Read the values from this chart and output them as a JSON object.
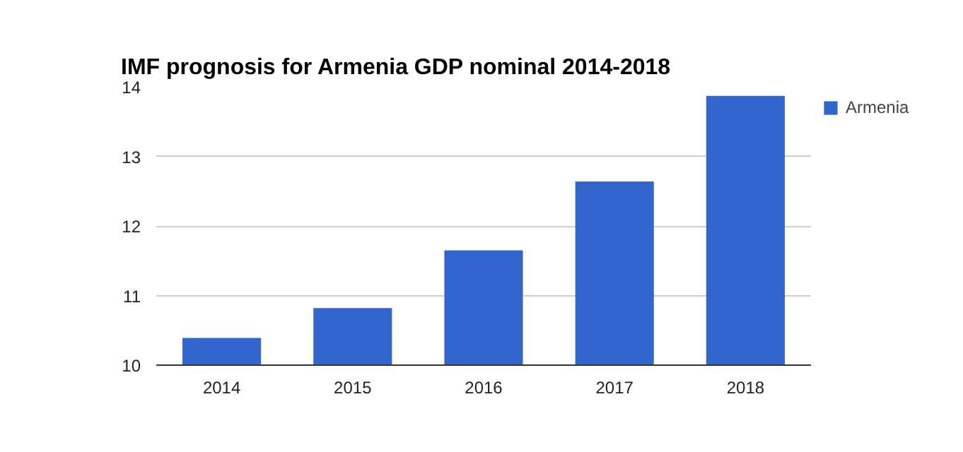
{
  "chart_data": {
    "type": "bar",
    "title": "IMF prognosis for Armenia GDP nominal 2014-2018",
    "categories": [
      "2014",
      "2015",
      "2016",
      "2017",
      "2018"
    ],
    "series": [
      {
        "name": "Armenia",
        "color": "#3366cc",
        "values": [
          10.39,
          10.82,
          11.65,
          12.64,
          13.87
        ]
      }
    ],
    "ylim": [
      10,
      14
    ],
    "yticks": [
      10,
      11,
      12,
      13,
      14
    ],
    "grid": "y",
    "legend": "top right"
  }
}
